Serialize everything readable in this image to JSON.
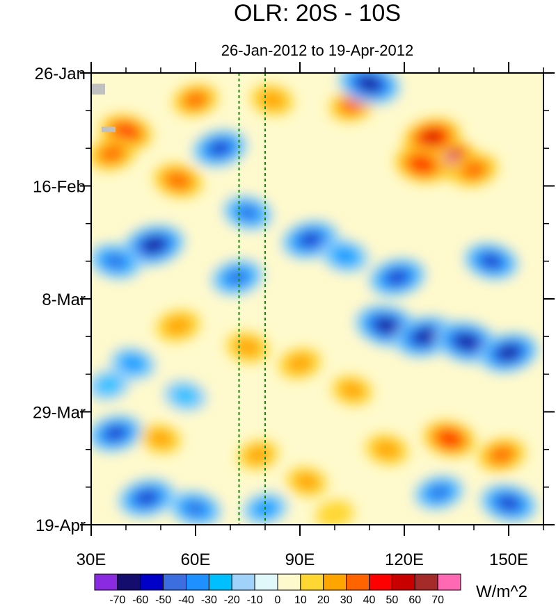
{
  "chart_data": {
    "type": "heatmap",
    "title": "OLR: 20S - 10S",
    "subtitle": "26-Jan-2012 to 19-Apr-2012",
    "x_axis": {
      "range": [
        30,
        160
      ],
      "ticks": [
        {
          "value": 30,
          "label": "30E"
        },
        {
          "value": 60,
          "label": "60E"
        },
        {
          "value": 90,
          "label": "90E"
        },
        {
          "value": 120,
          "label": "120E"
        },
        {
          "value": 150,
          "label": "150E"
        }
      ],
      "minor_step": 10
    },
    "y_axis": {
      "range": [
        "2012-01-26",
        "2012-04-19"
      ],
      "direction": "top-to-bottom",
      "ticks": [
        {
          "value": "2012-01-26",
          "label": "26-Jan"
        },
        {
          "value": "2012-02-16",
          "label": "16-Feb"
        },
        {
          "value": "2012-03-08",
          "label": "8-Mar"
        },
        {
          "value": "2012-03-29",
          "label": "29-Mar"
        },
        {
          "value": "2012-04-19",
          "label": "19-Apr"
        }
      ],
      "minor_step_days": 7
    },
    "reference_lines": [
      72.5,
      80
    ],
    "reference_line_color": "#0a8a0a",
    "colorbar": {
      "unit": "W/m^2",
      "levels": [
        "-70",
        "-60",
        "-50",
        "-40",
        "-30",
        "-20",
        "-10",
        "0",
        "10",
        "20",
        "30",
        "40",
        "50",
        "60",
        "70"
      ],
      "colors": [
        "#8a2be2",
        "#150d6e",
        "#0000c8",
        "#3c6ee0",
        "#1e90ff",
        "#00bfff",
        "#a0d2fa",
        "#e0f8fa",
        "#fffacd",
        "#ffd732",
        "#ffa500",
        "#ff6400",
        "#ff0000",
        "#c80000",
        "#a52a2a",
        "#ff69b4"
      ]
    },
    "features": [
      {
        "lon": 133,
        "date": "2012-02-11",
        "anomaly": 70
      },
      {
        "lon": 128,
        "date": "2012-02-07",
        "anomaly": 55
      },
      {
        "lon": 125,
        "date": "2012-02-12",
        "anomaly": 48
      },
      {
        "lon": 140,
        "date": "2012-02-13",
        "anomaly": 35
      },
      {
        "lon": 40,
        "date": "2012-02-06",
        "anomaly": 45
      },
      {
        "lon": 36,
        "date": "2012-02-10",
        "anomaly": 35
      },
      {
        "lon": 55,
        "date": "2012-02-15",
        "anomaly": 38
      },
      {
        "lon": 60,
        "date": "2012-01-31",
        "anomaly": 30
      },
      {
        "lon": 82,
        "date": "2012-01-31",
        "anomaly": 25
      },
      {
        "lon": 105,
        "date": "2012-02-01",
        "anomaly": 30
      },
      {
        "lon": 110,
        "date": "2012-01-28",
        "anomaly": -65
      },
      {
        "lon": 67,
        "date": "2012-02-09",
        "anomaly": -50
      },
      {
        "lon": 75,
        "date": "2012-02-21",
        "anomaly": -40
      },
      {
        "lon": 48,
        "date": "2012-02-27",
        "anomaly": -65
      },
      {
        "lon": 37,
        "date": "2012-03-01",
        "anomaly": -45
      },
      {
        "lon": 93,
        "date": "2012-02-26",
        "anomaly": -55
      },
      {
        "lon": 103,
        "date": "2012-02-29",
        "anomaly": -35
      },
      {
        "lon": 118,
        "date": "2012-03-04",
        "anomaly": -55
      },
      {
        "lon": 145,
        "date": "2012-03-01",
        "anomaly": -50
      },
      {
        "lon": 72,
        "date": "2012-03-04",
        "anomaly": -45
      },
      {
        "lon": 115,
        "date": "2012-03-13",
        "anomaly": -68
      },
      {
        "lon": 126,
        "date": "2012-03-15",
        "anomaly": -65
      },
      {
        "lon": 138,
        "date": "2012-03-16",
        "anomaly": -68
      },
      {
        "lon": 150,
        "date": "2012-03-18",
        "anomaly": -60
      },
      {
        "lon": 75,
        "date": "2012-03-17",
        "anomaly": 25
      },
      {
        "lon": 90,
        "date": "2012-03-20",
        "anomaly": 25
      },
      {
        "lon": 105,
        "date": "2012-03-25",
        "anomaly": 20
      },
      {
        "lon": 55,
        "date": "2012-03-13",
        "anomaly": 28
      },
      {
        "lon": 42,
        "date": "2012-03-20",
        "anomaly": -30
      },
      {
        "lon": 35,
        "date": "2012-03-24",
        "anomaly": -25
      },
      {
        "lon": 57,
        "date": "2012-03-26",
        "anomaly": -25
      },
      {
        "lon": 37,
        "date": "2012-04-02",
        "anomaly": -50
      },
      {
        "lon": 50,
        "date": "2012-04-03",
        "anomaly": 20
      },
      {
        "lon": 78,
        "date": "2012-04-06",
        "anomaly": 20
      },
      {
        "lon": 133,
        "date": "2012-04-03",
        "anomaly": 45
      },
      {
        "lon": 148,
        "date": "2012-04-06",
        "anomaly": 35
      },
      {
        "lon": 115,
        "date": "2012-04-05",
        "anomaly": 25
      },
      {
        "lon": 46,
        "date": "2012-04-14",
        "anomaly": -55
      },
      {
        "lon": 60,
        "date": "2012-04-16",
        "anomaly": -45
      },
      {
        "lon": 80,
        "date": "2012-04-16",
        "anomaly": -30
      },
      {
        "lon": 92,
        "date": "2012-04-11",
        "anomaly": 20
      },
      {
        "lon": 130,
        "date": "2012-04-13",
        "anomaly": -40
      },
      {
        "lon": 150,
        "date": "2012-04-15",
        "anomaly": -55
      },
      {
        "lon": 100,
        "date": "2012-04-17",
        "anomaly": 15
      }
    ],
    "missing_data": [
      {
        "lon_range": [
          30,
          34
        ],
        "date_range": [
          "2012-01-28",
          "2012-01-30"
        ]
      },
      {
        "lon_range": [
          33,
          37
        ],
        "date_range": [
          "2012-02-05",
          "2012-02-06"
        ]
      }
    ]
  }
}
